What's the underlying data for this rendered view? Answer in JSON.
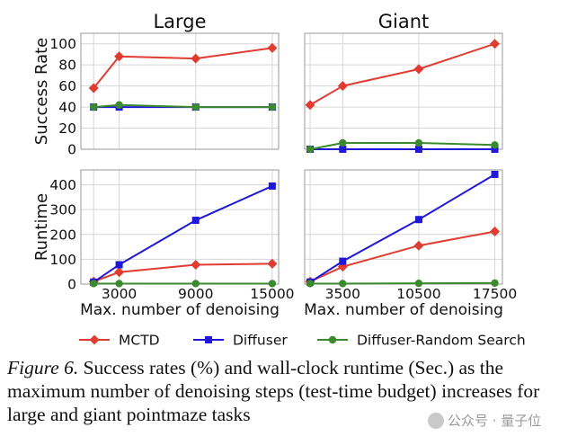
{
  "chart_data": [
    {
      "type": "line",
      "panel": "large-success",
      "title": "Large",
      "xlabel": "",
      "ylabel": "Success Rate",
      "x": [
        1000,
        3000,
        9000,
        15000
      ],
      "xticks": [],
      "xlim": [
        0,
        15500
      ],
      "ylim": [
        0,
        110
      ],
      "yticks": [
        0,
        20,
        40,
        60,
        80,
        100
      ],
      "grid": true,
      "series": [
        {
          "name": "MCTD",
          "values": [
            58,
            88,
            86,
            96
          ]
        },
        {
          "name": "Diffuser",
          "values": [
            40,
            40,
            40,
            40
          ]
        },
        {
          "name": "Diffuser-Random Search",
          "values": [
            40,
            42,
            40,
            40
          ]
        }
      ]
    },
    {
      "type": "line",
      "panel": "giant-success",
      "title": "Giant",
      "xlabel": "",
      "ylabel": "",
      "x": [
        500,
        3500,
        10500,
        17500
      ],
      "xticks": [],
      "xlim": [
        0,
        18200
      ],
      "ylim": [
        0,
        110
      ],
      "yticks": [
        0,
        20,
        40,
        60,
        80,
        100
      ],
      "grid": true,
      "series": [
        {
          "name": "MCTD",
          "values": [
            42,
            60,
            76,
            100
          ]
        },
        {
          "name": "Diffuser",
          "values": [
            0,
            0,
            0,
            0
          ]
        },
        {
          "name": "Diffuser-Random Search",
          "values": [
            0,
            6,
            6,
            4
          ]
        }
      ]
    },
    {
      "type": "line",
      "panel": "large-runtime",
      "title": "",
      "xlabel": "Max. number of denoising",
      "ylabel": "Runtime",
      "x": [
        1000,
        3000,
        9000,
        15000
      ],
      "xticks": [
        3000,
        9000,
        15000
      ],
      "xlim": [
        0,
        15500
      ],
      "ylim": [
        0,
        460
      ],
      "yticks": [
        0,
        100,
        200,
        300,
        400
      ],
      "grid": true,
      "series": [
        {
          "name": "MCTD",
          "values": [
            10,
            48,
            78,
            82
          ]
        },
        {
          "name": "Diffuser",
          "values": [
            8,
            78,
            257,
            395
          ]
        },
        {
          "name": "Diffuser-Random Search",
          "values": [
            2,
            2,
            2,
            2
          ]
        }
      ]
    },
    {
      "type": "line",
      "panel": "giant-runtime",
      "title": "",
      "xlabel": "Max. number of denoising",
      "ylabel": "",
      "x": [
        500,
        3500,
        10500,
        17500
      ],
      "xticks": [
        3500,
        10500,
        17500
      ],
      "xlim": [
        0,
        18200
      ],
      "ylim": [
        0,
        460
      ],
      "yticks": [
        0,
        100,
        200,
        300,
        400
      ],
      "grid": true,
      "series": [
        {
          "name": "MCTD",
          "values": [
            10,
            70,
            155,
            212
          ]
        },
        {
          "name": "Diffuser",
          "values": [
            8,
            92,
            260,
            442
          ]
        },
        {
          "name": "Diffuser-Random Search",
          "values": [
            2,
            2,
            3,
            4
          ]
        }
      ]
    }
  ],
  "legend": {
    "placement": "bottom",
    "items": [
      {
        "label": "MCTD",
        "color": "#e03c31",
        "marker": "diamond"
      },
      {
        "label": "Diffuser",
        "color": "#1f18d8",
        "marker": "square"
      },
      {
        "label": "Diffuser-Random Search",
        "color": "#3b8a2e",
        "marker": "circle"
      }
    ]
  },
  "caption": {
    "lead": "Figure 6.",
    "text": " Success rates (%) and wall-clock runtime (Sec.) as the maximum number of denoising steps (test-time budget) increases for large and giant pointmaze tasks"
  },
  "watermark": "公众号 · 量子位"
}
